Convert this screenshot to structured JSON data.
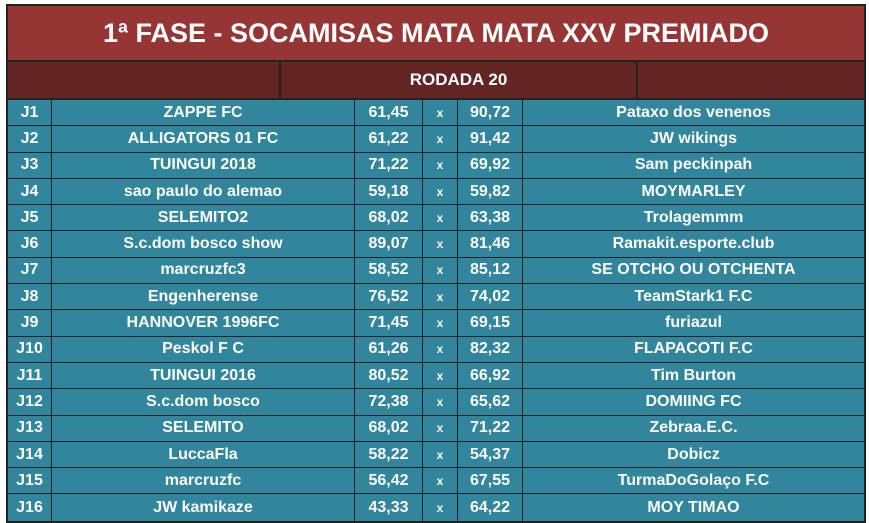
{
  "title": "1ª FASE - SOCAMISAS MATA MATA XXV PREMIADO",
  "round": "RODADA 20",
  "vs": "x",
  "matches": [
    {
      "id": "J1",
      "home": "ZAPPE FC",
      "home_score": "61,45",
      "away_score": "90,72",
      "away": "Pataxo dos venenos"
    },
    {
      "id": "J2",
      "home": "ALLIGATORS 01 FC",
      "home_score": "61,22",
      "away_score": "91,42",
      "away": "JW wikings"
    },
    {
      "id": "J3",
      "home": "TUINGUI 2018",
      "home_score": "71,22",
      "away_score": "69,92",
      "away": "Sam peckinpah"
    },
    {
      "id": "J4",
      "home": "sao paulo do alemao",
      "home_score": "59,18",
      "away_score": "59,82",
      "away": "MOYMARLEY"
    },
    {
      "id": "J5",
      "home": "SELEMITO2",
      "home_score": "68,02",
      "away_score": "63,38",
      "away": "Trolagemmm"
    },
    {
      "id": "J6",
      "home": "S.c.dom bosco show",
      "home_score": "89,07",
      "away_score": "81,46",
      "away": "Ramakit.esporte.club"
    },
    {
      "id": "J7",
      "home": "marcruzfc3",
      "home_score": "58,52",
      "away_score": "85,12",
      "away": "SE OTCHO OU OTCHENTA"
    },
    {
      "id": "J8",
      "home": "Engenherense",
      "home_score": "76,52",
      "away_score": "74,02",
      "away": "TeamStark1 F.C"
    },
    {
      "id": "J9",
      "home": "HANNOVER 1996FC",
      "home_score": "71,45",
      "away_score": "69,15",
      "away": "furiazul"
    },
    {
      "id": "J10",
      "home": "Peskol F C",
      "home_score": "61,26",
      "away_score": "82,32",
      "away": "FLAPACOTI F.C"
    },
    {
      "id": "J11",
      "home": "TUINGUI 2016",
      "home_score": "80,52",
      "away_score": "66,92",
      "away": "Tim Burton"
    },
    {
      "id": "J12",
      "home": "S.c.dom bosco",
      "home_score": "72,38",
      "away_score": "65,62",
      "away": "DOMIING FC"
    },
    {
      "id": "J13",
      "home": "SELEMITO",
      "home_score": "68,02",
      "away_score": "71,22",
      "away": "Zebraa.E.C."
    },
    {
      "id": "J14",
      "home": "LuccaFla",
      "home_score": "58,22",
      "away_score": "54,37",
      "away": "Dobicz"
    },
    {
      "id": "J15",
      "home": "marcruzfc",
      "home_score": "56,42",
      "away_score": "67,55",
      "away": "TurmaDoGolaço F.C"
    },
    {
      "id": "J16",
      "home": "JW kamikaze",
      "home_score": "43,33",
      "away_score": "64,22",
      "away": "MOY TIMAO"
    }
  ]
}
